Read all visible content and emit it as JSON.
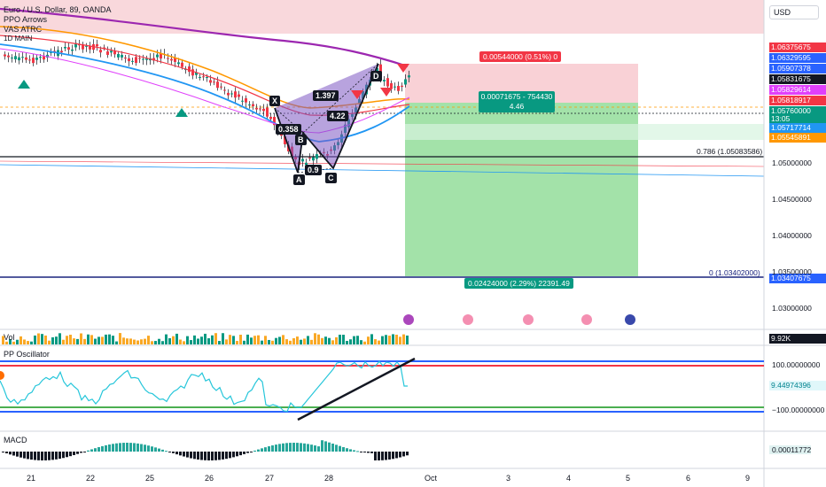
{
  "symbol_title": "Euro / U.S. Dollar, 89, OANDA",
  "indicators_legend": [
    "PPO Arrows",
    "VAS ATRC",
    "1D MAIN"
  ],
  "currency_button": "USD",
  "price_axis": {
    "ticks": [
      "1.05000000",
      "1.04500000",
      "1.04000000",
      "1.03500000",
      "1.03000000"
    ],
    "labels": [
      {
        "text": "1.06375675",
        "color": "#f23645"
      },
      {
        "text": "1.06329595",
        "color": "#2962ff"
      },
      {
        "text": "1.05907378",
        "color": "#2962ff"
      },
      {
        "text": "1.05831675",
        "color": "#131722"
      },
      {
        "text": "1.05829614",
        "color": "#e040fb"
      },
      {
        "text": "1.05818917",
        "color": "#f23645"
      },
      {
        "text": "1.05760000",
        "color": "#089981"
      },
      {
        "text": "13:05",
        "color": "#089981"
      },
      {
        "text": "1.05717714",
        "color": "#2196f3"
      },
      {
        "text": "1.05545891",
        "color": "#ff9800"
      },
      {
        "text": "1.03407675",
        "color": "#2962ff"
      }
    ]
  },
  "fib_labels": {
    "upper": "0.786 (1.05083586)",
    "lower": "0 (1.03402000)"
  },
  "position": {
    "stop_box": "0.00544000 (0.51%) 0",
    "entry_box_line1": "0.00071675 - 754430",
    "entry_box_line2": "4.46",
    "target_box": "0.02424000 (2.29%) 22391.49"
  },
  "pattern_points": {
    "X": "X",
    "A": "A",
    "B": "B",
    "C": "C",
    "D": "D"
  },
  "pattern_ratios": {
    "xb": "0.358",
    "ac": "0.9",
    "bd": "4.22",
    "xd": "1.397"
  },
  "volume_panel": {
    "title": "Vol",
    "value": "9.92K"
  },
  "oscillator_panel": {
    "title": "PP Oscillator",
    "upper": "100.00000000",
    "current": "9.44974396",
    "lower": "−100.00000000"
  },
  "macd_panel": {
    "title": "MACD",
    "value": "0.00011772"
  },
  "time_axis": [
    "21",
    "22",
    "25",
    "26",
    "27",
    "28",
    "Oct",
    "3",
    "4",
    "5",
    "6",
    "9"
  ],
  "colors": {
    "bull": "#089981",
    "bear": "#f23645",
    "ma_purple": "#9c27b0",
    "ma_blue": "#2196f3",
    "ma_orange": "#ff9800"
  }
}
